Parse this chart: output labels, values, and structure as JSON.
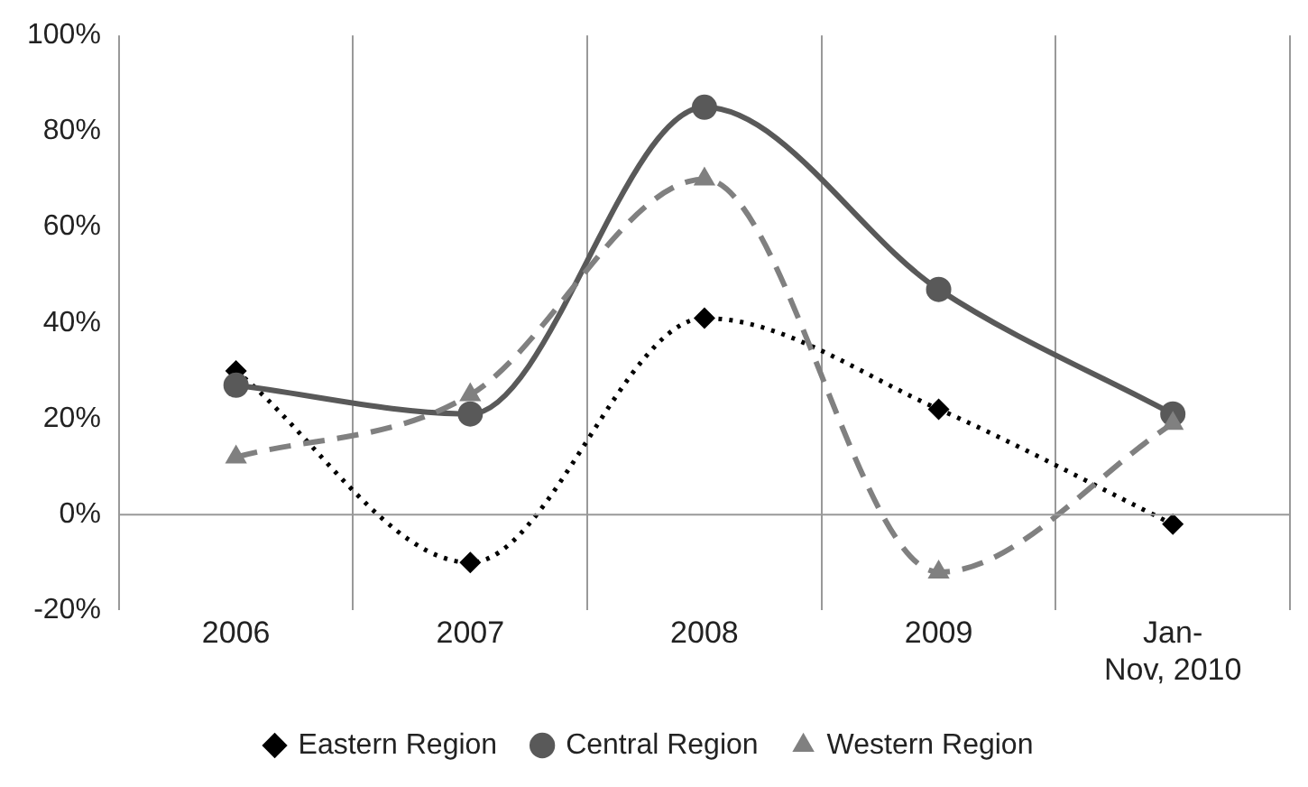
{
  "chart_data": {
    "type": "line",
    "categories": [
      "2006",
      "2007",
      "2008",
      "2009",
      "Jan-Nov, 2010"
    ],
    "series": [
      {
        "name": "Eastern Region",
        "color": "#000000",
        "marker": "diamond",
        "line_style": "dotted",
        "values": [
          30,
          -10,
          41,
          22,
          -2
        ]
      },
      {
        "name": "Central Region",
        "color": "#595959",
        "marker": "circle",
        "line_style": "solid",
        "values": [
          27,
          21,
          85,
          47,
          21
        ]
      },
      {
        "name": "Western Region",
        "color": "#808080",
        "marker": "triangle",
        "line_style": "dashed",
        "values": [
          12,
          25,
          70,
          -12,
          19
        ]
      }
    ],
    "ylim": [
      -20,
      100
    ],
    "yticks": [
      {
        "value": -20,
        "label": "-20%"
      },
      {
        "value": 0,
        "label": "0%"
      },
      {
        "value": 20,
        "label": "20%"
      },
      {
        "value": 40,
        "label": "40%"
      },
      {
        "value": 60,
        "label": "60%"
      },
      {
        "value": 80,
        "label": "80%"
      },
      {
        "value": 100,
        "label": "100%"
      }
    ],
    "ref_lines": [
      {
        "axis": "y",
        "value": 0,
        "color": "#999999"
      }
    ],
    "grid": "x",
    "legend": "bottom"
  }
}
